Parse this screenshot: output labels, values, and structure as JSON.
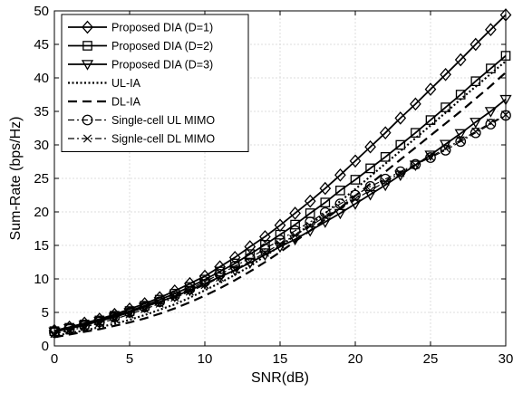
{
  "chart_data": {
    "type": "line",
    "xlabel": "SNR(dB)",
    "ylabel": "Sum-Rate (bps/Hz)",
    "xlim": [
      0,
      30
    ],
    "ylim": [
      0,
      50
    ],
    "xticks": [
      "0",
      "5",
      "10",
      "15",
      "20",
      "25",
      "30"
    ],
    "yticks": [
      "0",
      "5",
      "10",
      "15",
      "20",
      "25",
      "30",
      "35",
      "40",
      "45",
      "50"
    ],
    "grid": true,
    "legend_position": "top-left",
    "x": [
      0,
      1,
      2,
      3,
      4,
      5,
      6,
      7,
      8,
      9,
      10,
      11,
      12,
      13,
      14,
      15,
      16,
      17,
      18,
      19,
      20,
      21,
      22,
      23,
      24,
      25,
      26,
      27,
      28,
      29,
      30
    ],
    "series": [
      {
        "name": "Proposed DIA (D=1)",
        "marker": "diamond",
        "dash": "solid",
        "stroke_width": 1.8,
        "values": [
          2.3,
          2.8,
          3.4,
          4.0,
          4.7,
          5.5,
          6.3,
          7.2,
          8.2,
          9.3,
          10.4,
          11.8,
          13.2,
          14.8,
          16.3,
          18.0,
          19.8,
          21.6,
          23.5,
          25.5,
          27.6,
          29.7,
          31.8,
          34.0,
          36.1,
          38.3,
          40.5,
          42.7,
          45.0,
          47.2,
          49.4
        ]
      },
      {
        "name": "Proposed DIA (D=2)",
        "marker": "square",
        "dash": "solid",
        "stroke_width": 1.8,
        "values": [
          2.2,
          2.7,
          3.2,
          3.8,
          4.5,
          5.2,
          6.0,
          6.9,
          7.8,
          8.8,
          9.9,
          11.1,
          12.3,
          13.7,
          15.1,
          16.6,
          18.1,
          19.8,
          21.4,
          23.2,
          24.8,
          26.5,
          28.2,
          30.0,
          31.8,
          33.7,
          35.6,
          37.5,
          39.5,
          41.4,
          43.3
        ]
      },
      {
        "name": "Proposed DIA (D=3)",
        "marker": "triangle-down",
        "dash": "solid",
        "stroke_width": 1.8,
        "values": [
          2.1,
          2.6,
          3.1,
          3.7,
          4.3,
          5.0,
          5.8,
          6.6,
          7.4,
          8.3,
          9.3,
          10.3,
          11.3,
          12.4,
          13.6,
          14.8,
          15.9,
          17.2,
          18.5,
          19.8,
          21.2,
          22.6,
          24.0,
          25.5,
          27.0,
          28.5,
          30.1,
          31.7,
          33.4,
          35.0,
          36.8
        ]
      },
      {
        "name": "UL-IA",
        "marker": "none",
        "dash": "dotted",
        "stroke_width": 2.2,
        "values": [
          1.5,
          1.9,
          2.3,
          2.8,
          3.3,
          3.9,
          4.6,
          5.4,
          6.2,
          7.2,
          8.3,
          9.4,
          10.6,
          11.9,
          13.4,
          14.9,
          16.5,
          18.1,
          19.8,
          21.6,
          23.4,
          25.3,
          27.2,
          29.1,
          31.0,
          32.9,
          34.8,
          36.8,
          38.7,
          40.6,
          42.5
        ]
      },
      {
        "name": "DL-IA",
        "marker": "none",
        "dash": "dashed",
        "stroke_width": 2.2,
        "values": [
          1.3,
          1.7,
          2.1,
          2.5,
          3.0,
          3.5,
          4.1,
          4.8,
          5.6,
          6.5,
          7.5,
          8.6,
          9.8,
          11.1,
          12.5,
          14.0,
          15.6,
          17.2,
          18.9,
          20.6,
          22.4,
          24.2,
          26.0,
          27.8,
          29.6,
          31.4,
          33.2,
          35.0,
          36.9,
          38.8,
          40.8
        ]
      },
      {
        "name": "Single-cell UL MIMO",
        "marker": "circle",
        "dash": "dashdot",
        "stroke_width": 1.2,
        "values": [
          2.0,
          2.5,
          3.0,
          3.6,
          4.3,
          5.0,
          5.8,
          6.6,
          7.5,
          8.5,
          9.6,
          10.7,
          11.9,
          13.1,
          14.5,
          15.8,
          17.2,
          18.5,
          19.9,
          21.2,
          22.5,
          23.8,
          24.9,
          26.0,
          27.1,
          28.1,
          29.2,
          30.5,
          31.8,
          33.1,
          34.4
        ]
      },
      {
        "name": "Signle-cell DL MIMO",
        "marker": "x",
        "dash": "dashdot",
        "stroke_width": 1.2,
        "values": [
          1.8,
          2.3,
          2.8,
          3.4,
          4.0,
          4.7,
          5.5,
          6.3,
          7.2,
          8.1,
          9.1,
          10.2,
          11.4,
          12.6,
          13.9,
          15.2,
          16.5,
          17.9,
          19.3,
          20.6,
          21.9,
          23.2,
          24.5,
          25.8,
          27.0,
          28.2,
          29.5,
          30.7,
          32.0,
          33.3,
          34.5
        ]
      }
    ]
  }
}
